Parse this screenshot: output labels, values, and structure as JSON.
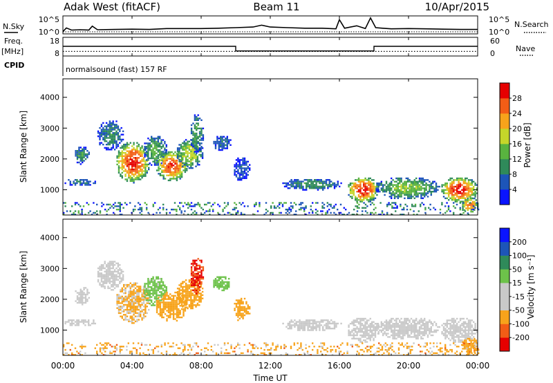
{
  "header": {
    "station": "Adak West (fitACF)",
    "beam": "Beam 11",
    "date": "10/Apr/2015"
  },
  "panels": {
    "nsky": {
      "left_label": "N.Sky",
      "right_label": "N.Search",
      "left_ticks": [
        "10^5",
        "10^0"
      ],
      "right_ticks": [
        "10^5",
        "10^0"
      ]
    },
    "freq": {
      "label_line1": "Freq.",
      "label_line2": "[MHz]",
      "right_label": "Nave",
      "left_ticks": [
        "18",
        "8"
      ],
      "right_ticks": [
        "60",
        "0"
      ]
    },
    "cpid": {
      "label": "CPID",
      "program": "normalsound (fast) 157 RF"
    }
  },
  "colors": {
    "power": [
      "#0a14ff",
      "#1d55b8",
      "#2f8a5a",
      "#59b33f",
      "#c5d62a",
      "#f7a31b",
      "#f25d16",
      "#e60000"
    ],
    "velocity": [
      "#e60000",
      "#f25d16",
      "#f7a31b",
      "#c9c9c9",
      "#c9c9c9",
      "#6dc24a",
      "#2f8a5a",
      "#1d55b8",
      "#0a14ff"
    ],
    "ground_scatter": "#c9c9c9"
  },
  "chart_data": [
    {
      "type": "line",
      "name": "nsky",
      "x": [
        0,
        0.2,
        0.5,
        1,
        1.5,
        1.7,
        2,
        3,
        4,
        5,
        6,
        7,
        8,
        9,
        10,
        11,
        11.5,
        12,
        13,
        14,
        15,
        15.8,
        16,
        16.3,
        17,
        17.5,
        17.8,
        18.1,
        18.5,
        19,
        20,
        21,
        22,
        23,
        24
      ],
      "y_log10": [
        0.3,
        1.5,
        0.8,
        0.9,
        0.8,
        2.1,
        0.9,
        1.0,
        1.1,
        1.0,
        1.3,
        1.3,
        1.3,
        1.4,
        1.6,
        1.8,
        2.4,
        1.8,
        1.6,
        1.4,
        1.4,
        1.2,
        4.2,
        1.4,
        2.2,
        1.3,
        4.8,
        1.6,
        1.4,
        1.2,
        1.3,
        1.2,
        1.1,
        1.0,
        1.0
      ],
      "ylim_log10": [
        0,
        5
      ]
    },
    {
      "type": "line",
      "name": "frequency",
      "x": [
        0,
        10,
        10,
        18,
        18,
        24
      ],
      "y": [
        13.2,
        13.2,
        10.3,
        10.3,
        13.2,
        13.2
      ],
      "nave": 12,
      "ylim": [
        8,
        18
      ],
      "nave_lim": [
        0,
        60
      ]
    },
    {
      "type": "heatmap",
      "name": "power",
      "xlabel": "Time UT",
      "ylabel": "Slant Range [km]",
      "xlim": [
        0,
        24
      ],
      "ylim": [
        180,
        4600
      ],
      "xticks": [
        "00:00",
        "04:00",
        "08:00",
        "12:00",
        "16:00",
        "20:00",
        "00:00"
      ],
      "yticks": [
        1000,
        2000,
        3000,
        4000
      ],
      "colorbar": {
        "label": "Power [dB]",
        "ticks": [
          4,
          8,
          12,
          16,
          20,
          24,
          28
        ],
        "range": [
          0,
          32
        ]
      },
      "regions": [
        {
          "t0": 0.0,
          "t1": 1.9,
          "r0": 1150,
          "r1": 1400,
          "peak": 9
        },
        {
          "t0": 0.6,
          "t1": 1.5,
          "r0": 1850,
          "r1": 2450,
          "peak": 11
        },
        {
          "t0": 1.9,
          "t1": 3.5,
          "r0": 2300,
          "r1": 3300,
          "peak": 10
        },
        {
          "t0": 3.0,
          "t1": 5.0,
          "r0": 1250,
          "r1": 2600,
          "peak": 30
        },
        {
          "t0": 4.6,
          "t1": 6.0,
          "r0": 1800,
          "r1": 2800,
          "peak": 14
        },
        {
          "t0": 5.3,
          "t1": 7.2,
          "r0": 1300,
          "r1": 2300,
          "peak": 28
        },
        {
          "t0": 6.5,
          "t1": 8.1,
          "r0": 1700,
          "r1": 2700,
          "peak": 18
        },
        {
          "t0": 7.3,
          "t1": 8.1,
          "r0": 2200,
          "r1": 3500,
          "peak": 12
        },
        {
          "t0": 8.6,
          "t1": 9.7,
          "r0": 2300,
          "r1": 2800,
          "peak": 8
        },
        {
          "t0": 9.8,
          "t1": 10.8,
          "r0": 1300,
          "r1": 2100,
          "peak": 6
        },
        {
          "t0": 12.6,
          "t1": 16.1,
          "r0": 1000,
          "r1": 1400,
          "peak": 11
        },
        {
          "t0": 16.4,
          "t1": 18.3,
          "r0": 600,
          "r1": 1450,
          "peak": 30
        },
        {
          "t0": 18.0,
          "t1": 21.8,
          "r0": 700,
          "r1": 1450,
          "peak": 16
        },
        {
          "t0": 21.8,
          "t1": 24.0,
          "r0": 600,
          "r1": 1450,
          "peak": 30
        },
        {
          "t0": 23.0,
          "t1": 24.0,
          "r0": 250,
          "r1": 800,
          "peak": 26
        },
        {
          "t0": 0.0,
          "t1": 24.0,
          "r0": 180,
          "r1": 600,
          "peak": 12
        }
      ]
    },
    {
      "type": "heatmap",
      "name": "velocity",
      "xlabel": "Time UT",
      "ylabel": "Slant Range [km]",
      "xlim": [
        0,
        24
      ],
      "ylim": [
        180,
        4600
      ],
      "xticks": [
        "00:00",
        "04:00",
        "08:00",
        "12:00",
        "16:00",
        "20:00",
        "00:00"
      ],
      "yticks": [
        1000,
        2000,
        3000,
        4000
      ],
      "colorbar": {
        "label": "Velocity [m s⁻¹]",
        "ticks": [
          "-200",
          "-100",
          "-50",
          "-15",
          "15",
          "50",
          "100",
          "200"
        ]
      },
      "regions": [
        {
          "t0": 0.0,
          "t1": 1.9,
          "r0": 1150,
          "r1": 1400,
          "ground": true
        },
        {
          "t0": 0.6,
          "t1": 1.5,
          "r0": 1850,
          "r1": 2450,
          "ground": true
        },
        {
          "t0": 1.9,
          "t1": 3.5,
          "r0": 2300,
          "r1": 3300,
          "ground": true
        },
        {
          "t0": 3.0,
          "t1": 5.0,
          "r0": 1250,
          "r1": 2600,
          "ground": false,
          "vel": -20
        },
        {
          "t0": 4.6,
          "t1": 6.0,
          "r0": 1800,
          "r1": 2800,
          "ground": false,
          "vel": 30
        },
        {
          "t0": 5.3,
          "t1": 7.2,
          "r0": 1300,
          "r1": 2300,
          "ground": false,
          "vel": -35
        },
        {
          "t0": 6.5,
          "t1": 8.1,
          "r0": 1700,
          "r1": 2700,
          "ground": false,
          "vel": -40
        },
        {
          "t0": 7.3,
          "t1": 8.1,
          "r0": 2200,
          "r1": 3500,
          "ground": false,
          "vel": -150
        },
        {
          "t0": 8.6,
          "t1": 9.7,
          "r0": 2300,
          "r1": 2800,
          "ground": false,
          "vel": 40
        },
        {
          "t0": 9.8,
          "t1": 10.8,
          "r0": 1300,
          "r1": 2100,
          "ground": false,
          "vel": -40
        },
        {
          "t0": 12.6,
          "t1": 16.1,
          "r0": 1000,
          "r1": 1400,
          "ground": true
        },
        {
          "t0": 16.4,
          "t1": 18.3,
          "r0": 600,
          "r1": 1450,
          "ground": true
        },
        {
          "t0": 18.0,
          "t1": 21.8,
          "r0": 700,
          "r1": 1450,
          "ground": true
        },
        {
          "t0": 21.8,
          "t1": 24.0,
          "r0": 600,
          "r1": 1450,
          "ground": true
        },
        {
          "t0": 23.0,
          "t1": 24.0,
          "r0": 250,
          "r1": 800,
          "ground": false,
          "vel": -60
        },
        {
          "t0": 0.0,
          "t1": 24.0,
          "r0": 180,
          "r1": 600,
          "ground": false,
          "vel": -40
        }
      ]
    }
  ]
}
